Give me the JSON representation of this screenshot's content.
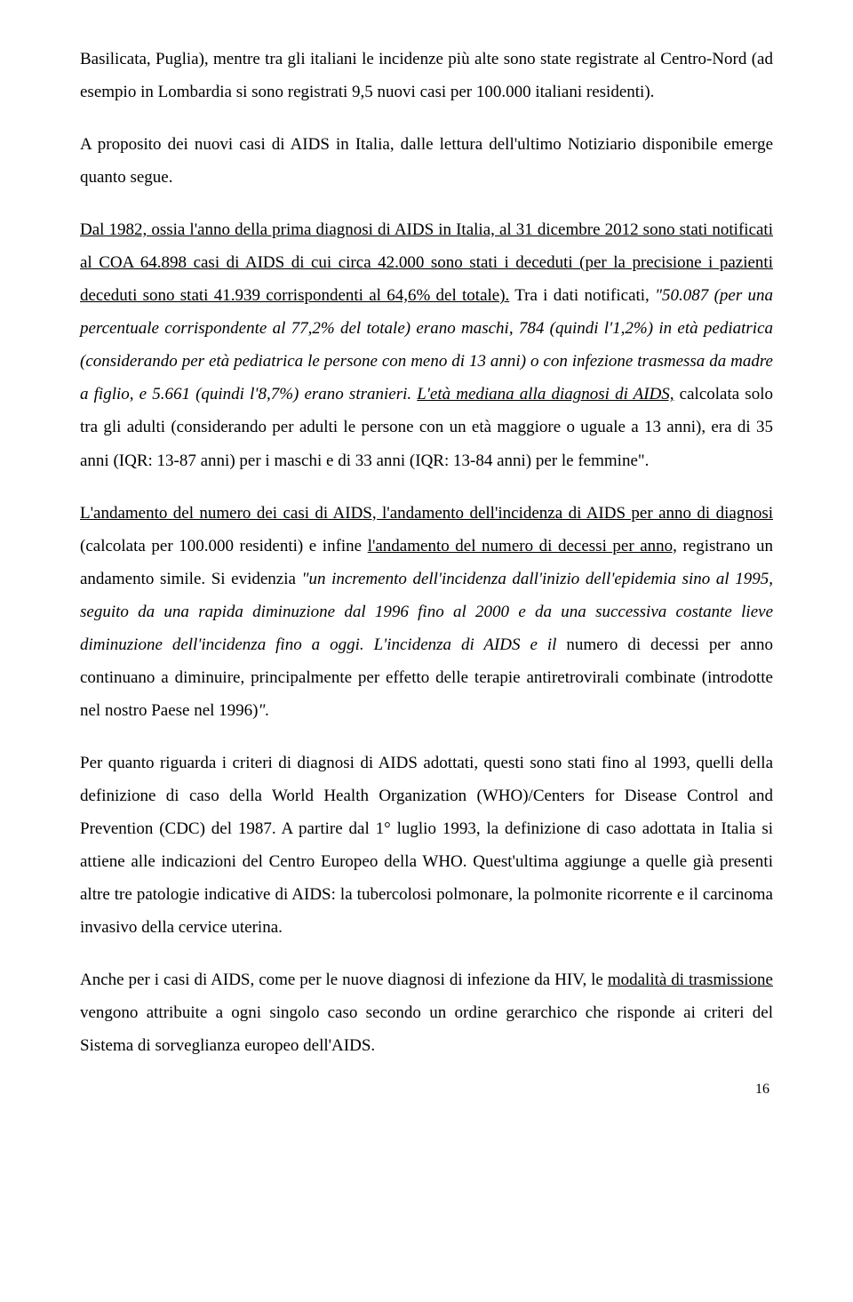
{
  "paragraphs": {
    "p1": {
      "s1": "Basilicata, Puglia), mentre tra gli italiani le incidenze più alte sono state registrate al Centro-Nord (ad esempio in Lombardia si sono registrati 9,5 nuovi casi per 100.000 italiani residenti)."
    },
    "p2": {
      "s1": "A proposito dei nuovi casi di AIDS in Italia, dalle lettura dell'ultimo Notiziario disponibile emerge quanto segue."
    },
    "p3": {
      "s1": "Dal 1982, ossia l'anno della prima diagnosi di AIDS in Italia, al 31 dicembre 2012 sono stati notificati al COA 64.898 casi di AIDS di cui circa 42.000 sono stati i deceduti (per la precisione i pazienti deceduti sono stati 41.939 corrispondenti al 64,6% del totale).",
      "s2a": " Tra i dati notificati, ",
      "s2b": "\"50.087 (per una percentuale corrispondente al 77,2% del totale) erano maschi, 784 ",
      "s2c": "(quindi l'1,2%)",
      "s2d": " in età pediatrica ",
      "s2e": "(considerando per età pediatrica le persone con meno di 13 anni)",
      "s2f": " o con infezione trasmessa da madre a figlio, e 5.661 (",
      "s2g": "quindi l'",
      "s2h": "8,7%) erano stranieri. ",
      "s2i": "L'età mediana alla diagnosi di AIDS,",
      "s2j": " calcolata solo tra gli adulti (considerando per adulti le persone con un età maggiore o uguale a 13 anni), era di 35 anni (IQR: 13-87 anni) per i maschi e di 33 anni (IQR: 13-84 anni) per le femmine\"."
    },
    "p4": {
      "s1a": "L'andamento del numero dei casi di AIDS, l'andamento dell'incidenza di AIDS per anno di diagnosi",
      "s1b": " (calcolata per 100.000 residenti) e infine ",
      "s1c": "l'andamento del numero di decessi per anno,",
      "s1d": " registrano un andamento simile. Si evidenzia ",
      "s1e": "\"un incremento dell'incidenza dall'inizio dell'epidemia sino al 1995, seguito da una rapida diminuzione dal 1996 fino al 2000 e da una successiva costante lieve diminuzione dell'incidenza fino a oggi. L'incidenza di AIDS e il ",
      "s1f": "numero di decessi per anno continuano a diminuire, principalmente per effetto delle terapie antiretrovirali combinate (introdotte nel nostro Paese nel 1996)",
      "s1g": "\"."
    },
    "p5": {
      "s1": "Per quanto riguarda i criteri di diagnosi di AIDS adottati, questi sono stati fino al 1993, quelli della definizione di caso della World Health Organization (WHO)/Centers for Disease Control and Prevention (CDC) del 1987. A partire dal 1° luglio 1993, la definizione di caso adottata in Italia si attiene alle indicazioni del Centro Europeo della WHO. Quest'ultima aggiunge a quelle già presenti altre tre patologie indicative di AIDS: la tubercolosi polmonare, la polmonite ricorrente e il carcinoma invasivo della cervice uterina."
    },
    "p6": {
      "s1a": "Anche per i casi di AIDS, come per le nuove diagnosi di infezione da HIV, le ",
      "s1b": "modalità di trasmissione",
      "s1c": " vengono attribuite a ogni singolo caso secondo un ordine gerarchico che risponde ai criteri del Sistema di sorveglianza europeo dell'AIDS."
    }
  },
  "pageNumber": "16"
}
